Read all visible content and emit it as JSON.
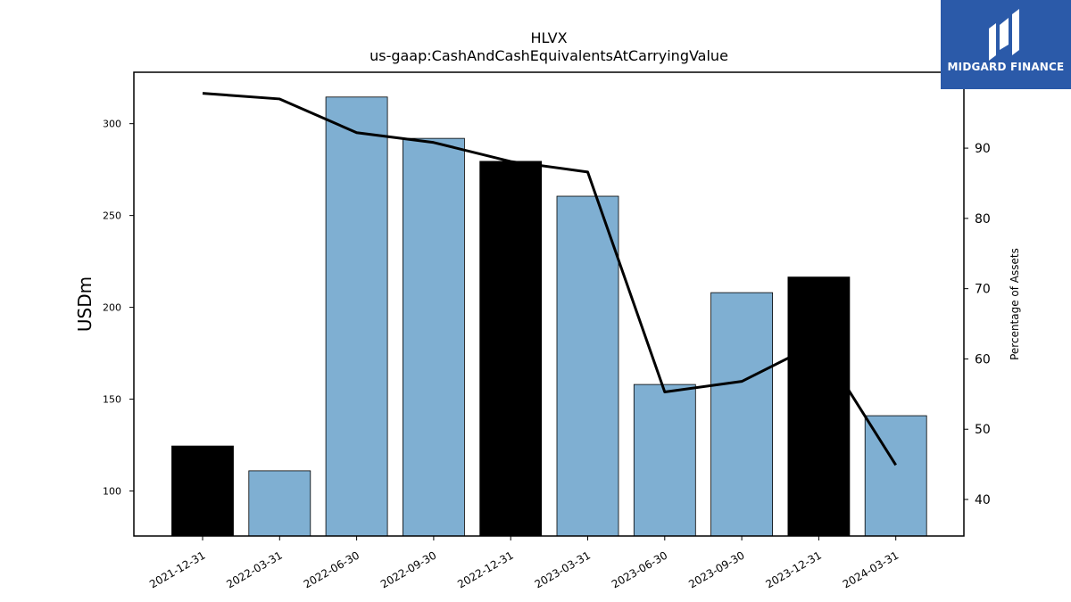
{
  "brand": {
    "name": "MIDGARD FINANCE",
    "bg_color": "#2b5aa9"
  },
  "chart_data": {
    "type": "bar",
    "title": "HLVX",
    "subtitle": "us-gaap:CashAndCashEquivalentsAtCarryingValue",
    "ylabel": "USDm",
    "y2label": "Percentage of Assets",
    "categories": [
      "2021-12-31",
      "2022-03-31",
      "2022-06-30",
      "2022-09-30",
      "2022-12-31",
      "2023-03-31",
      "2023-06-30",
      "2023-09-30",
      "2023-12-31",
      "2024-03-31"
    ],
    "series": [
      {
        "kind": "bar",
        "axis": "left",
        "values": [
          124.5,
          111,
          314.5,
          292,
          279.5,
          260.5,
          158,
          208,
          216.5,
          141
        ],
        "colors": [
          "#000000",
          "#7fafd2",
          "#7fafd2",
          "#7fafd2",
          "#000000",
          "#7fafd2",
          "#7fafd2",
          "#7fafd2",
          "#000000",
          "#7fafd2"
        ]
      },
      {
        "kind": "line",
        "axis": "right",
        "color": "#000000",
        "values": [
          97.8,
          97.0,
          92.2,
          90.8,
          88.1,
          86.6,
          55.3,
          56.8,
          62.3,
          44.9
        ]
      }
    ],
    "ylim": [
      75.5,
      328
    ],
    "yticks": [
      100,
      150,
      200,
      250,
      300
    ],
    "y2lim": [
      34.8,
      100.8
    ],
    "y2ticks": [
      40,
      50,
      60,
      70,
      80,
      90
    ],
    "grid": false
  }
}
